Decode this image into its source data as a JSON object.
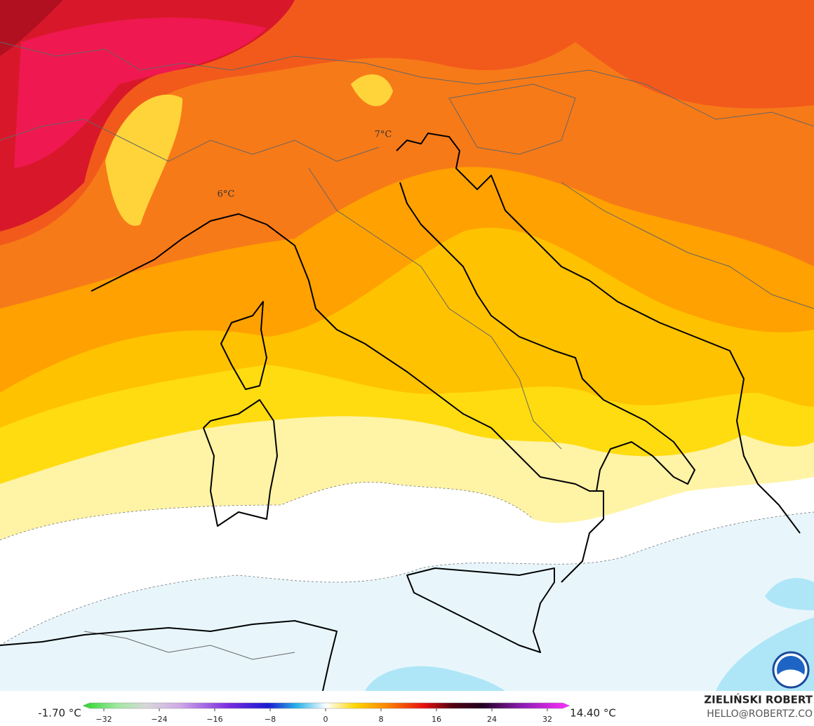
{
  "map_labels": [
    "7°C",
    "6°C"
  ],
  "colorbar": {
    "min_label": "-1.70 °C",
    "max_label": "14.40 °C",
    "range": [
      -32,
      32
    ],
    "ticks": [
      {
        "value": -32,
        "label": "−32"
      },
      {
        "value": -24,
        "label": "−24"
      },
      {
        "value": -16,
        "label": "−16"
      },
      {
        "value": -8,
        "label": "−8"
      },
      0,
      8,
      16,
      24,
      32
    ]
  },
  "credits": {
    "author": "ZIELIŃSKI ROBERT",
    "email": "HELLO@ROBERTZ.CO"
  }
}
